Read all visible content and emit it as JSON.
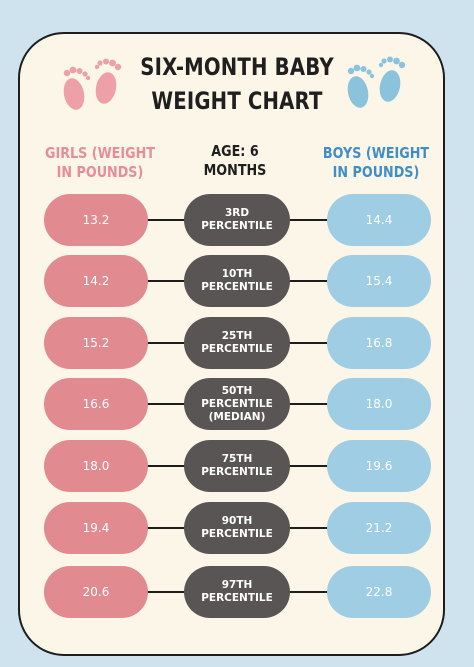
{
  "title": {
    "line1": "SIX-MONTH BABY",
    "line2": "WEIGHT CHART"
  },
  "headers": {
    "girls": "GIRLS (WEIGHT IN POUNDS)",
    "age": "AGE: 6 MONTHS",
    "boys": "BOYS (WEIGHT IN POUNDS)"
  },
  "colors": {
    "background": "#cfe3ef",
    "card": "#fbf6e8",
    "girls": "#e18a90",
    "boys": "#9fcde3",
    "percentile": "#5a5555",
    "girls_feet": "#eea0a8",
    "boys_feet": "#8cc3dc"
  },
  "icons": {
    "girls": "baby-feet-icon",
    "boys": "baby-feet-icon"
  },
  "rows": [
    {
      "girls": "13.2",
      "percentile": "3RD PERCENTILE",
      "boys": "14.4"
    },
    {
      "girls": "14.2",
      "percentile": "10TH PERCENTILE",
      "boys": "15.4"
    },
    {
      "girls": "15.2",
      "percentile": "25TH PERCENTILE",
      "boys": "16.8"
    },
    {
      "girls": "16.6",
      "percentile": "50TH PERCENTILE (MEDIAN)",
      "boys": "18.0"
    },
    {
      "girls": "18.0",
      "percentile": "75TH PERCENTILE",
      "boys": "19.6"
    },
    {
      "girls": "19.4",
      "percentile": "90TH PERCENTILE",
      "boys": "21.2"
    },
    {
      "girls": "20.6",
      "percentile": "97TH PERCENTILE",
      "boys": "22.8"
    }
  ]
}
